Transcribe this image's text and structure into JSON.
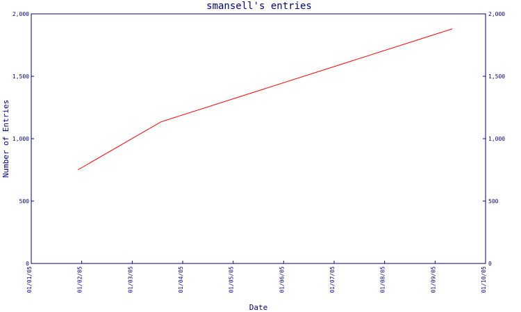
{
  "chart_data": {
    "type": "line",
    "title": "smansell's entries",
    "xlabel": "Date",
    "ylabel": "Number of Entries",
    "x_ticks": [
      "01/01/05",
      "01/02/05",
      "01/03/05",
      "01/04/05",
      "01/05/05",
      "01/06/05",
      "01/07/05",
      "01/08/05",
      "01/09/05",
      "01/10/05"
    ],
    "y_ticks": [
      "0",
      "500",
      "1,000",
      "1,500",
      "2,000"
    ],
    "ylim": [
      0,
      2000
    ],
    "xlim": [
      "2005-01-01",
      "2005-10-01"
    ],
    "grid": false,
    "series": [
      {
        "color": "#ff0000",
        "points": [
          {
            "x": "2005-01-29",
            "y": 750
          },
          {
            "x": "2005-03-20",
            "y": 1135
          },
          {
            "x": "2005-09-11",
            "y": 1880
          }
        ]
      }
    ]
  },
  "colors": {
    "axis": "#000080",
    "text": "#000080",
    "line": "#ff0000",
    "background": "#ffffff"
  }
}
